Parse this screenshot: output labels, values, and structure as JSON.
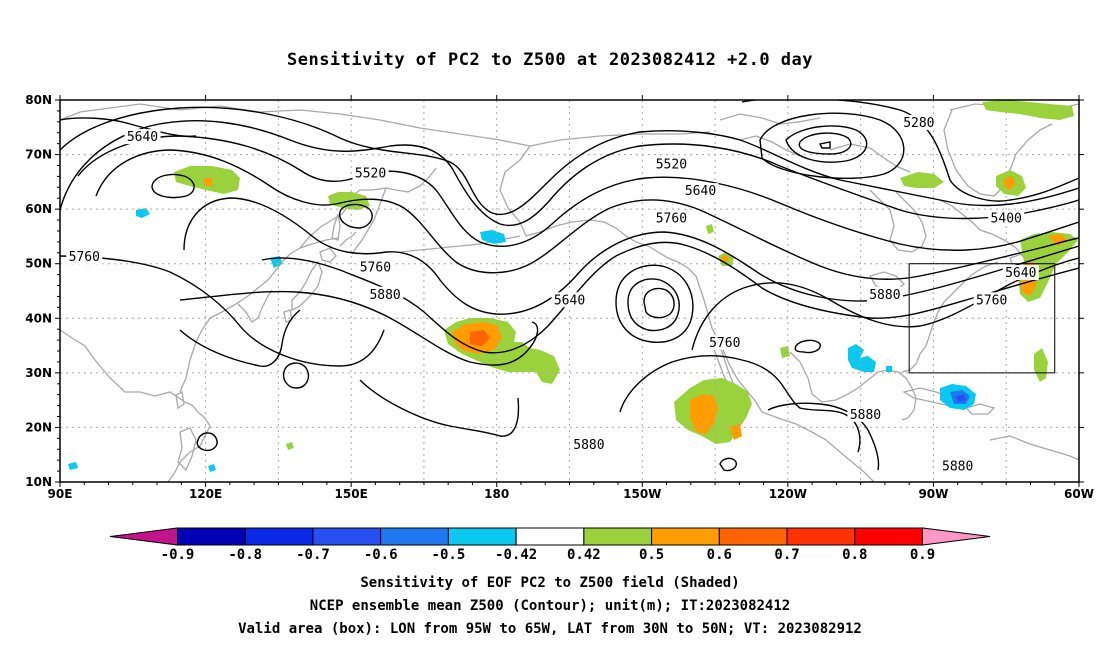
{
  "title": "Sensitivity of PC2 to Z500 at 2023082412 +2.0 day",
  "lat_labels": [
    {
      "lat": 80,
      "label": "80N"
    },
    {
      "lat": 70,
      "label": "70N"
    },
    {
      "lat": 60,
      "label": "60N"
    },
    {
      "lat": 50,
      "label": "50N"
    },
    {
      "lat": 40,
      "label": "40N"
    },
    {
      "lat": 30,
      "label": "30N"
    },
    {
      "lat": 20,
      "label": "20N"
    },
    {
      "lat": 10,
      "label": "10N"
    }
  ],
  "lon_labels": [
    {
      "lon": 90,
      "label": "90E"
    },
    {
      "lon": 120,
      "label": "120E"
    },
    {
      "lon": 150,
      "label": "150E"
    },
    {
      "lon": 180,
      "label": "180"
    },
    {
      "lon": 210,
      "label": "150W"
    },
    {
      "lon": 240,
      "label": "120W"
    },
    {
      "lon": 270,
      "label": "90W"
    },
    {
      "lon": 300,
      "label": "60W"
    }
  ],
  "contour_labels": [
    {
      "text": "5640",
      "lon": 107,
      "lat": 73.2
    },
    {
      "text": "5520",
      "lon": 154,
      "lat": 66.5
    },
    {
      "text": "5280",
      "lon": 267,
      "lat": 75.8
    },
    {
      "text": "5520",
      "lon": 216,
      "lat": 68.2
    },
    {
      "text": "5640",
      "lon": 222,
      "lat": 63.3
    },
    {
      "text": "5760",
      "lon": 216,
      "lat": 58.3
    },
    {
      "text": "5400",
      "lon": 285,
      "lat": 58.3
    },
    {
      "text": "5760",
      "lon": 95,
      "lat": 51.2
    },
    {
      "text": "5760",
      "lon": 155,
      "lat": 49.3
    },
    {
      "text": "5880",
      "lon": 157,
      "lat": 44.3
    },
    {
      "text": "5640",
      "lon": 195,
      "lat": 43.3
    },
    {
      "text": "5640",
      "lon": 288,
      "lat": 48.3
    },
    {
      "text": "5880",
      "lon": 260,
      "lat": 44.3
    },
    {
      "text": "5760",
      "lon": 282,
      "lat": 43.3
    },
    {
      "text": "5760",
      "lon": 227,
      "lat": 35.5
    },
    {
      "text": "5880",
      "lon": 256,
      "lat": 22.3
    },
    {
      "text": "5880",
      "lon": 199,
      "lat": 16.8
    },
    {
      "text": "5880",
      "lon": 275,
      "lat": 12.8
    }
  ],
  "valid_box": {
    "lon_min": 265,
    "lon_max": 295,
    "lat_min": 30,
    "lat_max": 50
  },
  "colorbar": {
    "colors": [
      "#c4148c",
      "#0000b4",
      "#0a28e6",
      "#2850f0",
      "#1e78f0",
      "#0ac8f0",
      "#ffffff",
      "#9ad23c",
      "#ff9c00",
      "#ff6400",
      "#ff3200",
      "#ff0000",
      "#ff96c8"
    ],
    "labels": [
      "-0.9",
      "-0.8",
      "-0.7",
      "-0.6",
      "-0.5",
      "-0.42",
      "0.42",
      "0.5",
      "0.6",
      "0.7",
      "0.8",
      "0.9"
    ]
  },
  "captions": [
    "Sensitivity of EOF PC2 to Z500 field (Shaded)",
    "NCEP ensemble mean Z500 (Contour); unit(m); IT:2023082412",
    "Valid area (box): LON from 95W to 65W, LAT from 30N to 50N; VT: 2023082912"
  ]
}
